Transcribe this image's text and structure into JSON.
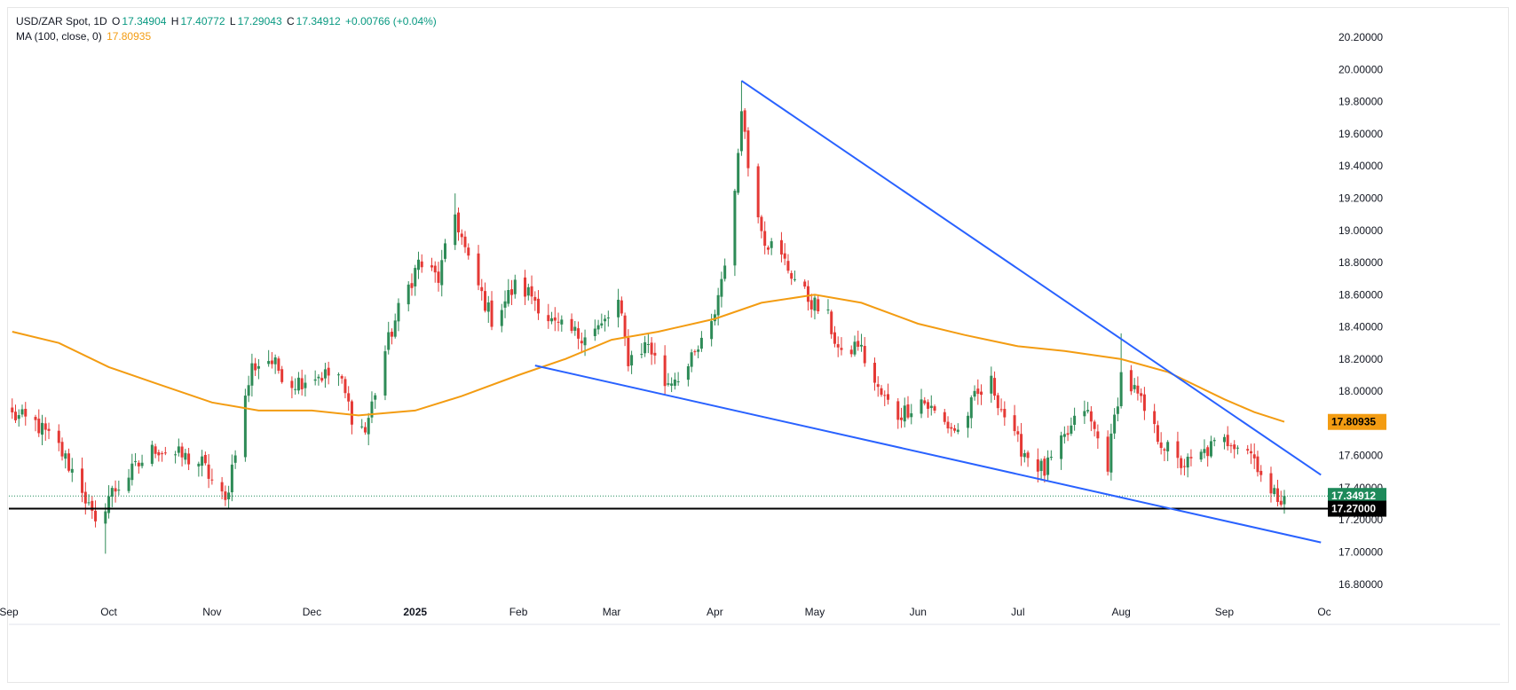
{
  "legend": {
    "symbol": "USD/ZAR Spot, 1D",
    "o_label": "O",
    "o_value": "17.34904",
    "h_label": "H",
    "h_value": "17.40772",
    "l_label": "L",
    "l_value": "17.29043",
    "c_label": "C",
    "c_value": "17.34912",
    "change": "+0.00766 (+0.04%)",
    "ma_label": "MA (100, close, 0)",
    "ma_value": "17.80935"
  },
  "colors": {
    "up": "#26a69a",
    "up_body": "#2e8b57",
    "down": "#e53935",
    "ma": "#f39c12",
    "trendline": "#2962ff",
    "support": "#000000",
    "last_price_bg": "#1e8a5a",
    "ma_label_bg": "#f39c12"
  },
  "chart_data": {
    "type": "candlestick",
    "symbol": "USD/ZAR Spot",
    "interval": "1D",
    "y_ticks": [
      "16.80000",
      "17.00000",
      "17.20000",
      "17.40000",
      "17.60000",
      "17.80000",
      "18.00000",
      "18.20000",
      "18.40000",
      "18.60000",
      "18.80000",
      "19.00000",
      "19.20000",
      "19.40000",
      "19.60000",
      "19.80000",
      "20.00000",
      "20.20000"
    ],
    "ylim": [
      16.65,
      20.3
    ],
    "x_labels": [
      {
        "label": "Sep",
        "date": "2024-09-01",
        "bold": false
      },
      {
        "label": "Oct",
        "date": "2024-10-01",
        "bold": false
      },
      {
        "label": "Nov",
        "date": "2024-11-01",
        "bold": false
      },
      {
        "label": "Dec",
        "date": "2024-12-01",
        "bold": false
      },
      {
        "label": "2025",
        "date": "2025-01-01",
        "bold": true
      },
      {
        "label": "Feb",
        "date": "2025-02-01",
        "bold": false
      },
      {
        "label": "Mar",
        "date": "2025-03-01",
        "bold": false
      },
      {
        "label": "Apr",
        "date": "2025-04-01",
        "bold": false
      },
      {
        "label": "May",
        "date": "2025-05-01",
        "bold": false
      },
      {
        "label": "Jun",
        "date": "2025-06-01",
        "bold": false
      },
      {
        "label": "Jul",
        "date": "2025-07-01",
        "bold": false
      },
      {
        "label": "Aug",
        "date": "2025-08-01",
        "bold": false
      },
      {
        "label": "Sep",
        "date": "2025-09-01",
        "bold": false
      },
      {
        "label": "Oc",
        "date": "2025-10-01",
        "bold": false
      }
    ],
    "anchors": [
      [
        "2024-09-02",
        17.85
      ],
      [
        "2024-09-09",
        17.8
      ],
      [
        "2024-09-16",
        17.65
      ],
      [
        "2024-09-23",
        17.4
      ],
      [
        "2024-09-27",
        17.15
      ],
      [
        "2024-10-01",
        17.35
      ],
      [
        "2024-10-08",
        17.5
      ],
      [
        "2024-10-15",
        17.65
      ],
      [
        "2024-10-22",
        17.6
      ],
      [
        "2024-10-29",
        17.55
      ],
      [
        "2024-11-05",
        17.3
      ],
      [
        "2024-11-08",
        17.65
      ],
      [
        "2024-11-13",
        18.15
      ],
      [
        "2024-11-18",
        18.2
      ],
      [
        "2024-11-25",
        18.05
      ],
      [
        "2024-12-02",
        18.1
      ],
      [
        "2024-12-09",
        18.1
      ],
      [
        "2024-12-13",
        17.85
      ],
      [
        "2024-12-17",
        17.75
      ],
      [
        "2024-12-23",
        18.25
      ],
      [
        "2024-12-27",
        18.5
      ],
      [
        "2025-01-02",
        18.8
      ],
      [
        "2025-01-08",
        18.7
      ],
      [
        "2025-01-13",
        19.1
      ],
      [
        "2025-01-17",
        18.8
      ],
      [
        "2025-01-24",
        18.45
      ],
      [
        "2025-01-31",
        18.65
      ],
      [
        "2025-02-05",
        18.6
      ],
      [
        "2025-02-12",
        18.4
      ],
      [
        "2025-02-19",
        18.35
      ],
      [
        "2025-02-26",
        18.4
      ],
      [
        "2025-03-03",
        18.55
      ],
      [
        "2025-03-06",
        18.2
      ],
      [
        "2025-03-12",
        18.3
      ],
      [
        "2025-03-17",
        18.05
      ],
      [
        "2025-03-24",
        18.15
      ],
      [
        "2025-03-31",
        18.4
      ],
      [
        "2025-04-03",
        18.7
      ],
      [
        "2025-04-07",
        19.2
      ],
      [
        "2025-04-09",
        19.8
      ],
      [
        "2025-04-11",
        19.4
      ],
      [
        "2025-04-16",
        18.95
      ],
      [
        "2025-04-22",
        18.8
      ],
      [
        "2025-04-28",
        18.6
      ],
      [
        "2025-05-05",
        18.45
      ],
      [
        "2025-05-09",
        18.2
      ],
      [
        "2025-05-14",
        18.3
      ],
      [
        "2025-05-20",
        18.0
      ],
      [
        "2025-05-26",
        17.85
      ],
      [
        "2025-06-02",
        17.95
      ],
      [
        "2025-06-09",
        17.8
      ],
      [
        "2025-06-13",
        17.75
      ],
      [
        "2025-06-18",
        17.95
      ],
      [
        "2025-06-23",
        18.05
      ],
      [
        "2025-06-30",
        17.7
      ],
      [
        "2025-07-04",
        17.6
      ],
      [
        "2025-07-09",
        17.5
      ],
      [
        "2025-07-15",
        17.7
      ],
      [
        "2025-07-21",
        17.9
      ],
      [
        "2025-07-28",
        17.55
      ],
      [
        "2025-08-01",
        18.1
      ],
      [
        "2025-08-05",
        18.0
      ],
      [
        "2025-08-11",
        17.75
      ],
      [
        "2025-08-18",
        17.55
      ],
      [
        "2025-08-22",
        17.55
      ],
      [
        "2025-08-28",
        17.65
      ],
      [
        "2025-09-03",
        17.7
      ],
      [
        "2025-09-08",
        17.65
      ],
      [
        "2025-09-11",
        17.55
      ],
      [
        "2025-09-15",
        17.35
      ],
      [
        "2025-09-19",
        17.34912
      ]
    ],
    "ma_points": [
      [
        "2024-09-02",
        18.37
      ],
      [
        "2024-09-16",
        18.3
      ],
      [
        "2024-10-01",
        18.15
      ],
      [
        "2024-10-15",
        18.05
      ],
      [
        "2024-11-01",
        17.93
      ],
      [
        "2024-11-15",
        17.88
      ],
      [
        "2024-12-01",
        17.88
      ],
      [
        "2024-12-15",
        17.85
      ],
      [
        "2025-01-01",
        17.88
      ],
      [
        "2025-01-15",
        17.97
      ],
      [
        "2025-02-01",
        18.1
      ],
      [
        "2025-02-15",
        18.2
      ],
      [
        "2025-03-01",
        18.32
      ],
      [
        "2025-03-15",
        18.37
      ],
      [
        "2025-04-01",
        18.45
      ],
      [
        "2025-04-15",
        18.55
      ],
      [
        "2025-05-01",
        18.6
      ],
      [
        "2025-05-15",
        18.55
      ],
      [
        "2025-06-01",
        18.42
      ],
      [
        "2025-06-15",
        18.35
      ],
      [
        "2025-07-01",
        18.28
      ],
      [
        "2025-07-15",
        18.25
      ],
      [
        "2025-08-01",
        18.2
      ],
      [
        "2025-08-15",
        18.12
      ],
      [
        "2025-09-01",
        17.95
      ],
      [
        "2025-09-10",
        17.87
      ],
      [
        "2025-09-19",
        17.81
      ]
    ],
    "trendlines": [
      {
        "name": "upper",
        "from": [
          "2025-04-09",
          19.93
        ],
        "to": [
          "2025-09-30",
          17.48
        ]
      },
      {
        "name": "lower",
        "from": [
          "2025-02-06",
          18.16
        ],
        "to": [
          "2025-09-30",
          17.06
        ]
      }
    ],
    "support_level": 17.27,
    "last_price": 17.34912,
    "price_labels": {
      "last": "17.34912",
      "ma": "17.80935",
      "support": "17.27000"
    },
    "events": [
      {
        "date": "2024-09-30",
        "low": 16.99
      },
      {
        "date": "2024-11-06",
        "low": 17.27
      },
      {
        "date": "2025-01-13",
        "high": 19.23
      },
      {
        "date": "2025-04-09",
        "high": 19.93
      },
      {
        "date": "2025-08-01",
        "high": 18.36
      }
    ]
  }
}
